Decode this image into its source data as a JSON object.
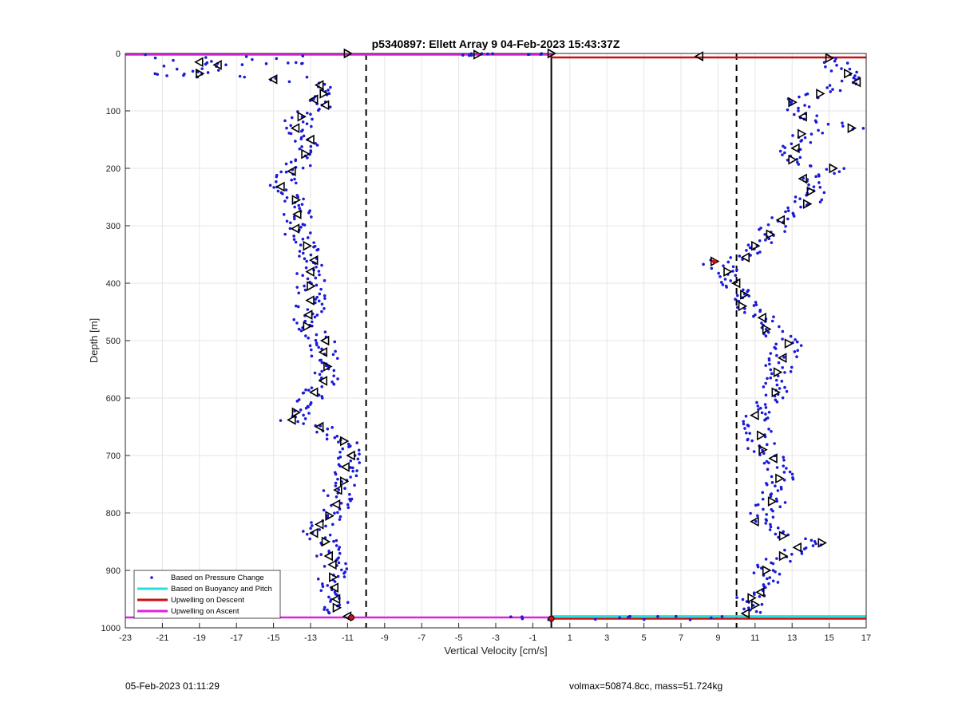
{
  "chart_data": {
    "type": "scatter",
    "title": "p5340897: Ellett Array 9 04-Feb-2023 15:43:37Z",
    "xlabel": "Vertical Velocity [cm/s]",
    "ylabel": "Depth [m]",
    "xlim": [
      -23,
      17
    ],
    "ylim": [
      0,
      1000
    ],
    "y_reversed": true,
    "grid": true,
    "x_ticks": [
      -23,
      -21,
      -19,
      -17,
      -15,
      -13,
      -11,
      -9,
      -7,
      -5,
      -3,
      -1,
      1,
      3,
      5,
      7,
      9,
      11,
      13,
      15,
      17
    ],
    "y_ticks": [
      0,
      100,
      200,
      300,
      400,
      500,
      600,
      700,
      800,
      900,
      1000
    ],
    "legend": {
      "placement": "bottom-left",
      "entries": [
        {
          "label": "Based on Pressure Change",
          "color": "#1a1adb",
          "style": "dot"
        },
        {
          "label": "Based on Buoyancy and Pitch",
          "color": "#22e0e0",
          "style": "line"
        },
        {
          "label": "Upwelling on Descent",
          "color": "#cc1111",
          "style": "line"
        },
        {
          "label": "Upwelling on Ascent",
          "color": "#e020e0",
          "style": "line"
        }
      ]
    },
    "reference_lines": [
      {
        "x": 0,
        "style": "solid",
        "color": "#000000"
      },
      {
        "x": -10,
        "style": "dashed",
        "color": "#000000"
      },
      {
        "x": 10,
        "style": "dashed",
        "color": "#000000"
      }
    ],
    "series": [
      {
        "name": "Upwelling on Ascent",
        "type": "line",
        "color": "#e020e0",
        "segments": [
          [
            [
              -23,
              2
            ],
            [
              0,
              2
            ]
          ],
          [
            [
              -23,
              982
            ],
            [
              0,
              982
            ]
          ]
        ]
      },
      {
        "name": "Upwelling on Descent",
        "type": "line",
        "color": "#cc1111",
        "segments": [
          [
            [
              0,
              7
            ],
            [
              17,
              7
            ]
          ],
          [
            [
              0,
              984
            ],
            [
              17,
              984
            ]
          ]
        ]
      },
      {
        "name": "Based on Buoyancy and Pitch",
        "type": "line",
        "color": "#22e0e0",
        "segments": [
          [
            [
              0,
              980
            ],
            [
              17,
              980
            ]
          ]
        ]
      },
      {
        "name": "Based on Pressure Change",
        "type": "scatter",
        "color": "#1a1adb",
        "ascent_profile": [
          [
            -11,
            0
          ],
          [
            -19,
            15
          ],
          [
            -18,
            20
          ],
          [
            -19,
            35
          ],
          [
            -15,
            45
          ],
          [
            -12.5,
            55
          ],
          [
            -12.3,
            70
          ],
          [
            -12.8,
            80
          ],
          [
            -12.2,
            90
          ],
          [
            -13.5,
            110
          ],
          [
            -13.8,
            130
          ],
          [
            -13,
            150
          ],
          [
            -13.3,
            175
          ],
          [
            -14,
            205
          ],
          [
            -14.6,
            232
          ],
          [
            -13.8,
            255
          ],
          [
            -13.7,
            280
          ],
          [
            -13.8,
            305
          ],
          [
            -13.2,
            335
          ],
          [
            -12.8,
            360
          ],
          [
            -13,
            380
          ],
          [
            -13,
            405
          ],
          [
            -13,
            430
          ],
          [
            -13.1,
            455
          ],
          [
            -13.2,
            475
          ],
          [
            -12.2,
            500
          ],
          [
            -12.3,
            520
          ],
          [
            -12.1,
            545
          ],
          [
            -12.3,
            570
          ],
          [
            -12.8,
            590
          ],
          [
            -13.8,
            625
          ],
          [
            -14,
            638
          ],
          [
            -12.5,
            650
          ],
          [
            -11.2,
            675
          ],
          [
            -10.8,
            700
          ],
          [
            -11.1,
            720
          ],
          [
            -11.2,
            745
          ],
          [
            -11.5,
            760
          ],
          [
            -11.6,
            785
          ],
          [
            -12,
            805
          ],
          [
            -12.5,
            820
          ],
          [
            -12.8,
            835
          ],
          [
            -12.2,
            850
          ],
          [
            -12,
            875
          ],
          [
            -11.8,
            890
          ],
          [
            -11.8,
            912
          ],
          [
            -11.7,
            930
          ],
          [
            -11.6,
            950
          ],
          [
            -11.6,
            965
          ],
          [
            -11,
            980
          ]
        ],
        "descent_profile": [
          [
            8,
            5
          ],
          [
            15,
            8
          ],
          [
            16,
            35
          ],
          [
            16.5,
            50
          ],
          [
            14.5,
            70
          ],
          [
            13,
            85
          ],
          [
            13.6,
            110
          ],
          [
            16.2,
            130
          ],
          [
            13.5,
            140
          ],
          [
            13.2,
            165
          ],
          [
            13,
            185
          ],
          [
            15.2,
            200
          ],
          [
            13.6,
            218
          ],
          [
            14,
            240
          ],
          [
            13.8,
            262
          ],
          [
            12.4,
            290
          ],
          [
            11.8,
            315
          ],
          [
            11,
            335
          ],
          [
            10.5,
            355
          ],
          [
            8.8,
            362
          ],
          [
            9.5,
            380
          ],
          [
            10,
            400
          ],
          [
            10.4,
            420
          ],
          [
            10.3,
            440
          ],
          [
            11.4,
            460
          ],
          [
            11.6,
            480
          ],
          [
            12.8,
            505
          ],
          [
            12.5,
            530
          ],
          [
            12.2,
            555
          ],
          [
            12.1,
            590
          ],
          [
            11,
            630
          ],
          [
            11.3,
            665
          ],
          [
            11.4,
            690
          ],
          [
            12,
            705
          ],
          [
            12.3,
            740
          ],
          [
            11.9,
            780
          ],
          [
            11,
            815
          ],
          [
            12.5,
            840
          ],
          [
            14.6,
            852
          ],
          [
            13.3,
            860
          ],
          [
            12.5,
            875
          ],
          [
            11.6,
            900
          ],
          [
            11.3,
            938
          ],
          [
            10.8,
            948
          ],
          [
            11,
            960
          ],
          [
            10.5,
            975
          ]
        ]
      }
    ],
    "annotations": {
      "footer_left": "05-Feb-2023 01:11:29",
      "footer_right": "volmax=50874.8cc, mass=51.724kg"
    }
  }
}
